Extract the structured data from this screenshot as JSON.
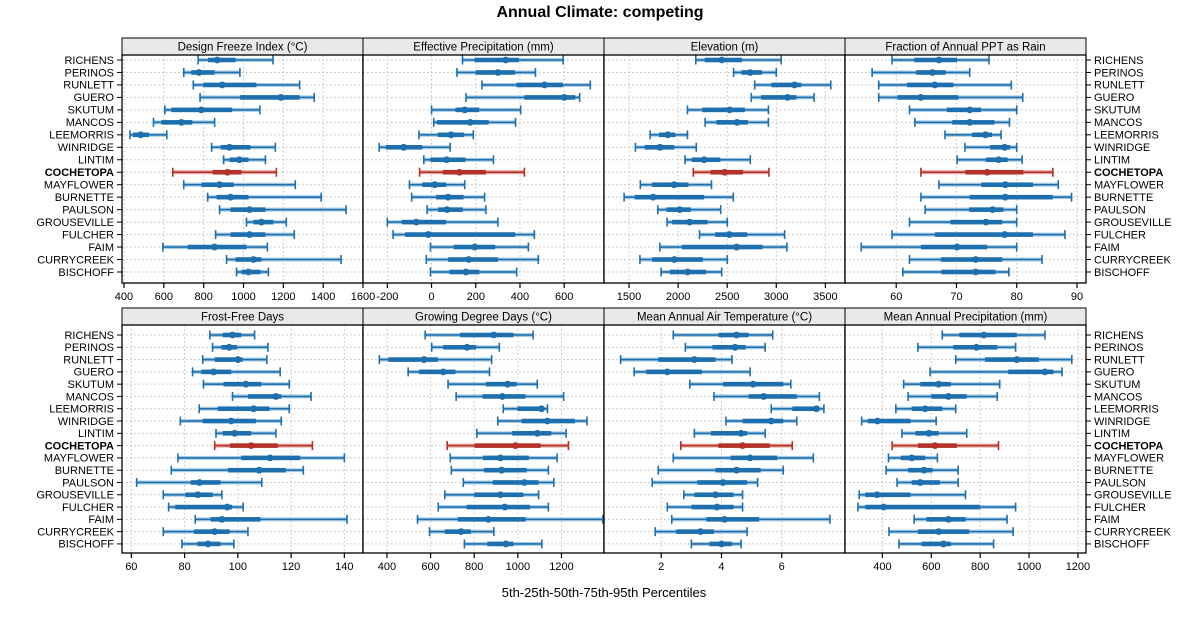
{
  "title": "Annual Climate: competing",
  "caption": "5th-25th-50th-75th-95th Percentiles",
  "highlight_site": "COCHETOPA",
  "sites": [
    "RICHENS",
    "PERINOS",
    "RUNLETT",
    "GUERO",
    "SKUTUM",
    "MANCOS",
    "LEEMORRIS",
    "WINRIDGE",
    "LINTIM",
    "COCHETOPA",
    "MAYFLOWER",
    "BURNETTE",
    "PAULSON",
    "GROUSEVILLE",
    "FULCHER",
    "FAIM",
    "CURRYCREEK",
    "BISCHOFF"
  ],
  "colors": {
    "series_blue": "#1e6fae",
    "series_blue_light": "#a9cce4",
    "highlight_red": "#b23129",
    "highlight_red_light": "#e7a9a3",
    "grid": "#bdbdbd",
    "strip_bg": "#e9e9e9",
    "border": "#000000",
    "text": "#000000"
  },
  "chart_data": {
    "type": "trellis-percentile-dotplot",
    "percentiles": [
      5,
      25,
      50,
      75,
      95
    ],
    "layout": {
      "rows": 2,
      "cols": 4,
      "grid": "dotted",
      "site_labels": "both-sides"
    },
    "panels": [
      {
        "strip": "Design Freeze Index (°C)",
        "xlim": [
          390,
          1600
        ],
        "ticks": [
          400,
          600,
          800,
          1000,
          1200,
          1400,
          1600
        ],
        "values": [
          [
            772,
            822,
            868,
            960,
            1148
          ],
          [
            700,
            738,
            777,
            855,
            982
          ],
          [
            748,
            798,
            893,
            1065,
            1282
          ],
          [
            782,
            982,
            1188,
            1282,
            1355
          ],
          [
            605,
            638,
            788,
            943,
            1082
          ],
          [
            548,
            588,
            688,
            743,
            855
          ],
          [
            430,
            445,
            483,
            525,
            615
          ],
          [
            840,
            885,
            930,
            1035,
            1160
          ],
          [
            900,
            930,
            980,
            1025,
            1110
          ],
          [
            645,
            845,
            920,
            990,
            1165
          ],
          [
            700,
            790,
            880,
            950,
            1260
          ],
          [
            820,
            865,
            935,
            1025,
            1390
          ],
          [
            880,
            935,
            1030,
            1110,
            1515
          ],
          [
            1015,
            1050,
            1090,
            1150,
            1215
          ],
          [
            860,
            935,
            1030,
            1110,
            1255
          ],
          [
            595,
            720,
            855,
            1015,
            1120
          ],
          [
            915,
            960,
            1050,
            1090,
            1490
          ],
          [
            965,
            990,
            1025,
            1085,
            1125
          ]
        ]
      },
      {
        "strip": "Effective Precipitation (mm)",
        "xlim": [
          -310,
          780
        ],
        "ticks": [
          -200,
          0,
          200,
          400,
          600
        ],
        "values": [
          [
            140,
            195,
            335,
            395,
            595
          ],
          [
            115,
            200,
            300,
            378,
            470
          ],
          [
            228,
            384,
            511,
            594,
            718
          ],
          [
            156,
            420,
            600,
            650,
            670
          ],
          [
            0,
            108,
            150,
            216,
            403
          ],
          [
            10,
            25,
            175,
            258,
            380
          ],
          [
            -57,
            28,
            88,
            148,
            189
          ],
          [
            -237,
            -207,
            -126,
            -42,
            84
          ],
          [
            -35,
            -5,
            68,
            153,
            280
          ],
          [
            -54,
            51,
            126,
            246,
            420
          ],
          [
            -100,
            -42,
            15,
            66,
            150
          ],
          [
            -90,
            21,
            75,
            145,
            240
          ],
          [
            -20,
            30,
            70,
            141,
            246
          ],
          [
            -200,
            -135,
            -69,
            66,
            300
          ],
          [
            -174,
            -120,
            -15,
            378,
            465
          ],
          [
            -5,
            100,
            195,
            288,
            438
          ],
          [
            -24,
            75,
            168,
            300,
            483
          ],
          [
            -5,
            81,
            156,
            216,
            385
          ]
        ]
      },
      {
        "strip": "Elevation (m)",
        "xlim": [
          1245,
          3700
        ],
        "ticks": [
          1500,
          2000,
          2500,
          3000,
          3500
        ],
        "values": [
          [
            2180,
            2270,
            2445,
            2650,
            3050
          ],
          [
            2565,
            2645,
            2735,
            2855,
            3000
          ],
          [
            2780,
            2950,
            3185,
            3255,
            3555
          ],
          [
            2745,
            2845,
            3115,
            3205,
            3385
          ],
          [
            2095,
            2245,
            2525,
            2680,
            2920
          ],
          [
            2275,
            2390,
            2600,
            2710,
            2920
          ],
          [
            1715,
            1805,
            1895,
            1970,
            2095
          ],
          [
            1565,
            1660,
            1815,
            1960,
            2185
          ],
          [
            2070,
            2140,
            2265,
            2430,
            2735
          ],
          [
            2155,
            2330,
            2475,
            2660,
            2925
          ],
          [
            1615,
            1735,
            1960,
            2105,
            2340
          ],
          [
            1450,
            1557,
            1746,
            2265,
            2562
          ],
          [
            1793,
            1881,
            2016,
            2131,
            2434
          ],
          [
            1888,
            1938,
            2117,
            2299,
            2501
          ],
          [
            2218,
            2377,
            2522,
            2704,
            3085
          ],
          [
            1814,
            2039,
            2596,
            2859,
            3108
          ],
          [
            1611,
            1736,
            1962,
            2252,
            2501
          ],
          [
            1827,
            1915,
            2097,
            2286,
            2444
          ]
        ]
      },
      {
        "strip": "Fraction of Annual PPT as Rain",
        "xlim": [
          51.5,
          91.5
        ],
        "ticks": [
          60,
          70,
          80,
          90
        ],
        "values": [
          [
            59.3,
            63,
            67.1,
            70.1,
            75.4
          ],
          [
            56,
            63.3,
            66,
            68.2,
            72.2
          ],
          [
            57.1,
            61.8,
            66.4,
            69.5,
            79.1
          ],
          [
            57.1,
            60.2,
            64.1,
            70.3,
            81
          ],
          [
            62.2,
            68.4,
            72.2,
            74.1,
            80
          ],
          [
            63.1,
            69.3,
            72.2,
            76.3,
            78.8
          ],
          [
            68.1,
            72.6,
            74.8,
            75.9,
            77.4
          ],
          [
            71.4,
            75.6,
            78,
            78.9,
            80
          ],
          [
            70.1,
            74.9,
            77,
            78.5,
            80.9
          ],
          [
            64.1,
            71.5,
            75.1,
            81.1,
            86
          ],
          [
            67.1,
            74.1,
            78.1,
            82.7,
            86.9
          ],
          [
            64.1,
            72.2,
            78.1,
            86,
            89.1
          ],
          [
            64.8,
            72.1,
            76,
            77.8,
            80
          ],
          [
            62.2,
            69,
            74.9,
            77.6,
            80
          ],
          [
            59.3,
            66.4,
            78,
            82.7,
            88
          ],
          [
            54.2,
            64.1,
            70.1,
            75.1,
            80
          ],
          [
            62.2,
            67.4,
            73.2,
            77.6,
            84.2
          ],
          [
            61.1,
            67.5,
            73.2,
            76.5,
            78.7
          ]
        ]
      },
      {
        "strip": "Frost-Free Days",
        "xlim": [
          56.5,
          147
        ],
        "ticks": [
          60,
          80,
          100,
          120,
          140
        ],
        "values": [
          [
            89.5,
            94.3,
            98,
            101.3,
            106.3
          ],
          [
            90.5,
            93.8,
            96.8,
            99.6,
            111.3
          ],
          [
            86.8,
            91.3,
            100,
            101.8,
            110.9
          ],
          [
            83,
            86.3,
            90.9,
            97.5,
            115.9
          ],
          [
            87.1,
            94.6,
            103,
            108.8,
            119.3
          ],
          [
            98,
            103.8,
            114.3,
            116.3,
            127.5
          ],
          [
            85.5,
            92.5,
            105.9,
            111.8,
            119.3
          ],
          [
            78.4,
            86.8,
            97.5,
            106.8,
            116.3
          ],
          [
            91.8,
            94.3,
            98.8,
            105,
            114.3
          ],
          [
            91.3,
            97.1,
            105,
            115,
            128
          ],
          [
            77.5,
            101.3,
            112.1,
            123.4,
            140
          ],
          [
            75,
            96.3,
            108,
            118,
            124.6
          ],
          [
            62,
            82.3,
            85.6,
            93.5,
            109
          ],
          [
            72,
            80.3,
            85,
            90.6,
            94
          ],
          [
            74,
            76.5,
            96,
            97.8,
            102
          ],
          [
            84,
            89.8,
            94,
            108.5,
            141
          ],
          [
            72,
            83.5,
            91.3,
            96.9,
            103.8
          ],
          [
            79,
            84.8,
            88.8,
            93.5,
            98.5
          ]
        ]
      },
      {
        "strip": "Growing Degree Days (°C)",
        "xlim": [
          290,
          1395
        ],
        "ticks": [
          400,
          600,
          800,
          1000,
          1200
        ],
        "values": [
          [
            575,
            735,
            890,
            980,
            1070
          ],
          [
            605,
            658,
            767,
            809,
            915
          ],
          [
            365,
            406,
            570,
            633,
            880
          ],
          [
            497,
            547,
            658,
            714,
            870
          ],
          [
            680,
            853,
            953,
            994,
            1089
          ],
          [
            717,
            838,
            929,
            1035,
            1210
          ],
          [
            933,
            998,
            1108,
            1120,
            1136
          ],
          [
            908,
            1017,
            1135,
            1262,
            1317
          ],
          [
            812,
            974,
            1089,
            1153,
            1221
          ],
          [
            676,
            801,
            989,
            1104,
            1232
          ],
          [
            690,
            840,
            920,
            1050,
            1180
          ],
          [
            695,
            845,
            925,
            1040,
            1140
          ],
          [
            750,
            885,
            1030,
            1095,
            1165
          ],
          [
            665,
            800,
            920,
            1025,
            1095
          ],
          [
            635,
            765,
            940,
            1055,
            1140
          ],
          [
            540,
            725,
            865,
            1035,
            1390
          ],
          [
            595,
            665,
            740,
            785,
            890
          ],
          [
            755,
            860,
            945,
            980,
            1110
          ]
        ]
      },
      {
        "strip": "Mean Annual Air Temperature (°C)",
        "xlim": [
          0.1,
          8.1
        ],
        "ticks": [
          2,
          4,
          6
        ],
        "values": [
          [
            2.4,
            3.9,
            4.5,
            4.9,
            5.7
          ],
          [
            2.8,
            3.7,
            4.45,
            4.8,
            5.45
          ],
          [
            0.65,
            1.9,
            3.1,
            3.8,
            4.35
          ],
          [
            1.1,
            1.5,
            2.2,
            3.35,
            4.95
          ],
          [
            2.95,
            4.05,
            5.05,
            6.05,
            6.3
          ],
          [
            3.75,
            4.9,
            5.4,
            6.5,
            7.25
          ],
          [
            5.65,
            6.35,
            7.15,
            7.25,
            7.4
          ],
          [
            4.15,
            4.7,
            5.65,
            6.05,
            6.5
          ],
          [
            3.1,
            3.65,
            4.65,
            4.85,
            5.45
          ],
          [
            2.65,
            3.9,
            4.7,
            5.6,
            6.35
          ],
          [
            2.4,
            4.3,
            4.95,
            5.85,
            7.05
          ],
          [
            1.9,
            3.8,
            4.5,
            5.3,
            6.05
          ],
          [
            1.7,
            3.2,
            4.05,
            4.85,
            5.2
          ],
          [
            2.75,
            3.1,
            3.8,
            4.4,
            4.7
          ],
          [
            2.2,
            3,
            3.85,
            4.4,
            4.7
          ],
          [
            2.35,
            3.5,
            4.1,
            5.25,
            7.6
          ],
          [
            1.8,
            2.5,
            3.3,
            3.75,
            4.85
          ],
          [
            3,
            3.6,
            4,
            4.35,
            4.65
          ]
        ]
      },
      {
        "strip": "Mean Annual Precipitation (mm)",
        "xlim": [
          247,
          1233
        ],
        "ticks": [
          400,
          600,
          800,
          1000,
          1200
        ],
        "values": [
          [
            645,
            715,
            815,
            950,
            1065
          ],
          [
            545,
            690,
            785,
            870,
            945
          ],
          [
            700,
            820,
            950,
            1040,
            1175
          ],
          [
            595,
            915,
            1065,
            1100,
            1135
          ],
          [
            487,
            555,
            630,
            680,
            880
          ],
          [
            505,
            600,
            670,
            745,
            870
          ],
          [
            455,
            520,
            575,
            645,
            700
          ],
          [
            315,
            340,
            380,
            515,
            620
          ],
          [
            480,
            535,
            590,
            630,
            745
          ],
          [
            440,
            545,
            615,
            705,
            875
          ],
          [
            425,
            475,
            520,
            575,
            625
          ],
          [
            415,
            505,
            570,
            605,
            710
          ],
          [
            460,
            520,
            555,
            635,
            710
          ],
          [
            305,
            330,
            378,
            515,
            740
          ],
          [
            300,
            330,
            405,
            800,
            945
          ],
          [
            530,
            580,
            670,
            740,
            910
          ],
          [
            427,
            545,
            630,
            755,
            935
          ],
          [
            468,
            560,
            650,
            680,
            855
          ]
        ]
      }
    ]
  }
}
